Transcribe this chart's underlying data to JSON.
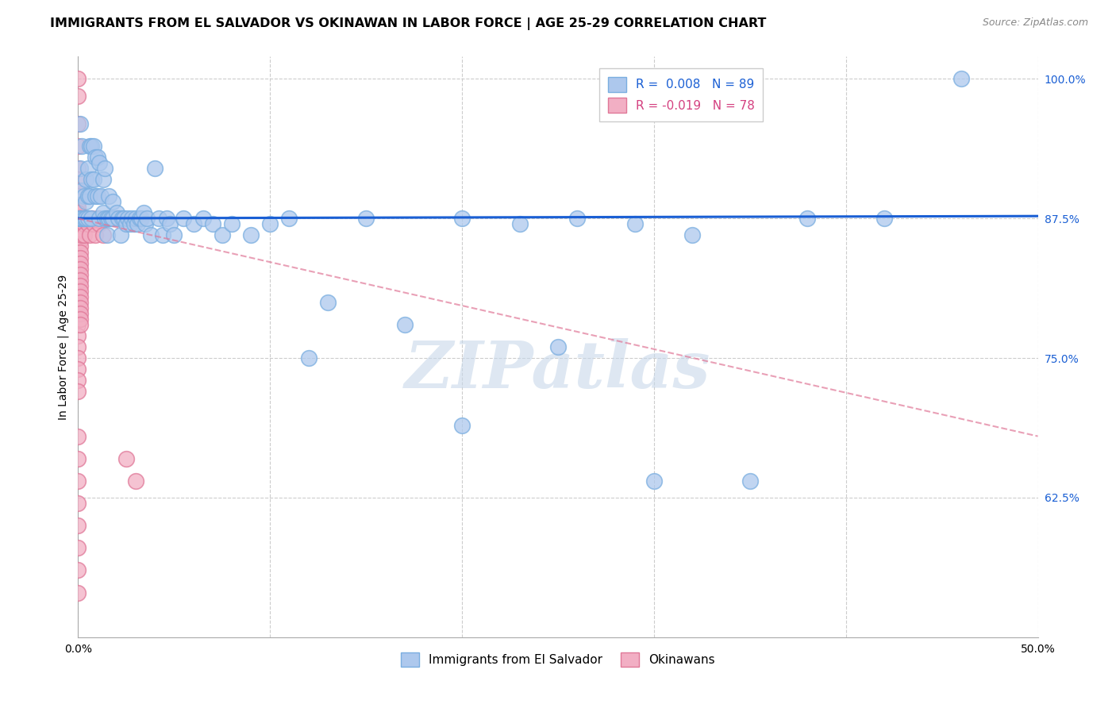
{
  "title": "IMMIGRANTS FROM EL SALVADOR VS OKINAWAN IN LABOR FORCE | AGE 25-29 CORRELATION CHART",
  "source": "Source: ZipAtlas.com",
  "ylabel": "In Labor Force | Age 25-29",
  "xlim": [
    0.0,
    0.5
  ],
  "ylim": [
    0.5,
    1.02
  ],
  "xticks": [
    0.0,
    0.1,
    0.2,
    0.3,
    0.4,
    0.5
  ],
  "xticklabels": [
    "0.0%",
    "",
    "",
    "",
    "",
    "50.0%"
  ],
  "ytick_positions": [
    0.625,
    0.75,
    0.875,
    1.0
  ],
  "ytick_labels": [
    "62.5%",
    "75.0%",
    "87.5%",
    "100.0%"
  ],
  "blue_r": 0.008,
  "blue_n": 89,
  "pink_r": -0.019,
  "pink_n": 78,
  "legend_labels": [
    "Immigrants from El Salvador",
    "Okinawans"
  ],
  "blue_color": "#adc8ed",
  "blue_edge": "#7aaee0",
  "pink_color": "#f2afc4",
  "pink_edge": "#e07898",
  "blue_line_color": "#1a5fd4",
  "pink_line_color": "#e8a0b8",
  "watermark": "ZIPatlas",
  "watermark_color": "#c8d8ea",
  "grid_color": "#cccccc",
  "blue_scatter_x": [
    0.0005,
    0.001,
    0.001,
    0.001,
    0.002,
    0.002,
    0.002,
    0.003,
    0.003,
    0.004,
    0.004,
    0.004,
    0.005,
    0.005,
    0.005,
    0.006,
    0.006,
    0.007,
    0.007,
    0.007,
    0.008,
    0.008,
    0.009,
    0.009,
    0.01,
    0.01,
    0.011,
    0.011,
    0.012,
    0.013,
    0.013,
    0.014,
    0.014,
    0.015,
    0.015,
    0.016,
    0.016,
    0.017,
    0.018,
    0.018,
    0.02,
    0.021,
    0.022,
    0.023,
    0.024,
    0.025,
    0.026,
    0.027,
    0.028,
    0.029,
    0.03,
    0.031,
    0.032,
    0.033,
    0.034,
    0.035,
    0.036,
    0.038,
    0.04,
    0.042,
    0.044,
    0.046,
    0.048,
    0.05,
    0.055,
    0.06,
    0.065,
    0.07,
    0.075,
    0.08,
    0.09,
    0.1,
    0.11,
    0.12,
    0.13,
    0.15,
    0.17,
    0.2,
    0.23,
    0.26,
    0.29,
    0.32,
    0.35,
    0.38,
    0.42,
    0.2,
    0.25,
    0.3,
    0.46
  ],
  "blue_scatter_y": [
    0.875,
    0.96,
    0.92,
    0.875,
    0.94,
    0.9,
    0.875,
    0.895,
    0.875,
    0.91,
    0.89,
    0.875,
    0.92,
    0.895,
    0.875,
    0.94,
    0.895,
    0.94,
    0.91,
    0.875,
    0.94,
    0.91,
    0.93,
    0.895,
    0.93,
    0.895,
    0.925,
    0.875,
    0.895,
    0.91,
    0.88,
    0.92,
    0.875,
    0.875,
    0.86,
    0.895,
    0.875,
    0.875,
    0.89,
    0.875,
    0.88,
    0.875,
    0.86,
    0.875,
    0.875,
    0.87,
    0.875,
    0.87,
    0.875,
    0.87,
    0.875,
    0.87,
    0.875,
    0.875,
    0.88,
    0.87,
    0.875,
    0.86,
    0.92,
    0.875,
    0.86,
    0.875,
    0.87,
    0.86,
    0.875,
    0.87,
    0.875,
    0.87,
    0.86,
    0.87,
    0.86,
    0.87,
    0.875,
    0.75,
    0.8,
    0.875,
    0.78,
    0.875,
    0.87,
    0.875,
    0.87,
    0.86,
    0.64,
    0.875,
    0.875,
    0.69,
    0.76,
    0.64,
    1.0
  ],
  "pink_scatter_x": [
    0.0,
    0.0,
    0.0,
    0.0,
    0.0,
    0.0,
    0.0,
    0.0,
    0.0,
    0.0,
    0.0,
    0.0,
    0.0,
    0.0,
    0.0,
    0.0,
    0.0,
    0.0,
    0.0,
    0.0,
    0.0,
    0.0,
    0.0,
    0.0,
    0.0,
    0.0,
    0.0,
    0.0,
    0.0,
    0.0,
    0.001,
    0.001,
    0.001,
    0.001,
    0.001,
    0.001,
    0.001,
    0.001,
    0.001,
    0.001,
    0.001,
    0.001,
    0.001,
    0.001,
    0.001,
    0.001,
    0.001,
    0.001,
    0.001,
    0.001,
    0.002,
    0.002,
    0.002,
    0.002,
    0.003,
    0.003,
    0.004,
    0.005,
    0.006,
    0.007,
    0.008,
    0.009,
    0.01,
    0.011,
    0.013,
    0.015,
    0.02,
    0.025,
    0.03,
    0.001,
    0.0,
    0.0,
    0.0,
    0.0,
    0.0,
    0.0,
    0.0,
    0.0
  ],
  "pink_scatter_y": [
    1.0,
    0.985,
    0.96,
    0.94,
    0.92,
    0.91,
    0.9,
    0.895,
    0.89,
    0.885,
    0.88,
    0.875,
    0.87,
    0.865,
    0.86,
    0.855,
    0.85,
    0.84,
    0.83,
    0.82,
    0.81,
    0.8,
    0.79,
    0.78,
    0.77,
    0.76,
    0.75,
    0.74,
    0.73,
    0.72,
    0.875,
    0.87,
    0.865,
    0.86,
    0.855,
    0.85,
    0.845,
    0.84,
    0.835,
    0.83,
    0.825,
    0.82,
    0.815,
    0.81,
    0.805,
    0.8,
    0.795,
    0.79,
    0.785,
    0.78,
    0.875,
    0.87,
    0.865,
    0.86,
    0.87,
    0.86,
    0.875,
    0.87,
    0.86,
    0.875,
    0.87,
    0.86,
    0.875,
    0.87,
    0.86,
    0.875,
    0.875,
    0.66,
    0.64,
    0.875,
    0.68,
    0.66,
    0.64,
    0.62,
    0.6,
    0.58,
    0.56,
    0.54
  ],
  "blue_trend_x": [
    0.0,
    0.5
  ],
  "blue_trend_y": [
    0.8752,
    0.8772
  ],
  "pink_trend_x": [
    0.0,
    0.5
  ],
  "pink_trend_y": [
    0.875,
    0.68
  ]
}
